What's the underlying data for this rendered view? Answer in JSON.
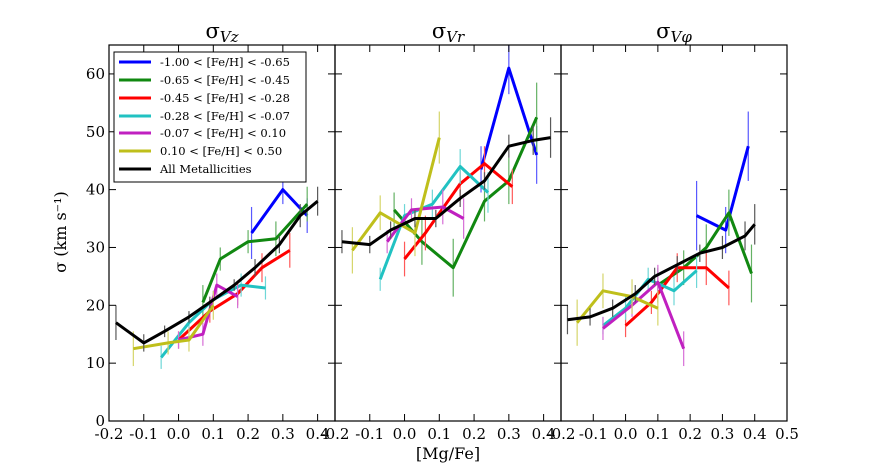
{
  "figure": {
    "xlabel": "[Mg/Fe]",
    "ylabel": "σ (km s⁻¹)",
    "legend": {
      "placement": "top-left of first panel",
      "entries": [
        {
          "label": "-1.00 < [Fe/H] < -0.65",
          "color": "#0000ff"
        },
        {
          "label": "-0.65 < [Fe/H] < -0.45",
          "color": "#118811"
        },
        {
          "label": "-0.45 < [Fe/H] < -0.28",
          "color": "#ff0000"
        },
        {
          "label": "-0.28 < [Fe/H] < -0.07",
          "color": "#21c2c2"
        },
        {
          "label": "-0.07 < [Fe/H] < 0.10",
          "color": "#c020c0"
        },
        {
          "label": "0.10 < [Fe/H] < 0.50",
          "color": "#bfbf1b"
        },
        {
          "label": "All Metallicities",
          "color": "#000000"
        }
      ]
    }
  },
  "chart_data": [
    {
      "type": "line",
      "title": "σVz",
      "title_main": "σ",
      "title_sub": "Vz",
      "xlim": [
        -0.2,
        0.45
      ],
      "ylim": [
        0,
        65
      ],
      "xticks": [
        "-0.2",
        "-0.1",
        "0.0",
        "0.1",
        "0.2",
        "0.3",
        "0.4"
      ],
      "xtick_values": [
        -0.2,
        -0.1,
        0.0,
        0.1,
        0.2,
        0.3,
        0.4
      ],
      "yticks": [
        "0",
        "10",
        "20",
        "30",
        "40",
        "50",
        "60"
      ],
      "ytick_values": [
        0,
        10,
        20,
        30,
        40,
        50,
        60
      ],
      "series": [
        {
          "name": "-1.00 < [Fe/H] < -0.65",
          "color": "#0000ff",
          "x": [
            0.21,
            0.3,
            0.37
          ],
          "y": [
            32.5,
            40.0,
            35.5
          ],
          "err": [
            4.5,
            2.5,
            3.0
          ]
        },
        {
          "name": "-0.65 < [Fe/H] < -0.45",
          "color": "#118811",
          "x": [
            0.07,
            0.12,
            0.2,
            0.28,
            0.37
          ],
          "y": [
            20.5,
            28.0,
            31.0,
            31.5,
            37.5
          ],
          "err": [
            3.0,
            2.0,
            2.0,
            3.0,
            3.0
          ]
        },
        {
          "name": "-0.45 < [Fe/H] < -0.28",
          "color": "#ff0000",
          "x": [
            0.0,
            0.09,
            0.17,
            0.24,
            0.32
          ],
          "y": [
            14.0,
            19.0,
            22.0,
            26.5,
            29.5
          ],
          "err": [
            1.5,
            2.0,
            2.0,
            2.5,
            3.0
          ]
        },
        {
          "name": "-0.28 < [Fe/H] < -0.07",
          "color": "#21c2c2",
          "x": [
            -0.05,
            0.03,
            0.1,
            0.18,
            0.25
          ],
          "y": [
            11.0,
            17.0,
            21.0,
            23.5,
            23.0
          ],
          "err": [
            2.0,
            1.5,
            1.5,
            2.0,
            2.0
          ]
        },
        {
          "name": "-0.07 < [Fe/H] < 0.10",
          "color": "#c020c0",
          "x": [
            0.0,
            0.07,
            0.11,
            0.17
          ],
          "y": [
            14.0,
            15.0,
            23.5,
            21.5
          ],
          "err": [
            1.5,
            2.0,
            2.0,
            2.0
          ]
        },
        {
          "name": "0.10 < [Fe/H] < 0.50",
          "color": "#bfbf1b",
          "x": [
            -0.13,
            -0.03,
            0.03,
            0.1
          ],
          "y": [
            12.5,
            13.5,
            14.0,
            20.0
          ],
          "err": [
            3.0,
            2.0,
            2.0,
            2.5
          ]
        },
        {
          "name": "All Metallicities",
          "color": "#000000",
          "x": [
            -0.18,
            -0.1,
            -0.04,
            0.03,
            0.09,
            0.16,
            0.22,
            0.29,
            0.35,
            0.4
          ],
          "y": [
            17.0,
            13.5,
            15.5,
            18.0,
            20.5,
            23.5,
            26.5,
            30.5,
            35.5,
            38.0
          ],
          "err": [
            3.0,
            1.5,
            1.0,
            1.0,
            1.0,
            1.0,
            1.5,
            1.5,
            2.0,
            2.5
          ]
        }
      ]
    },
    {
      "type": "line",
      "title": "σVr",
      "title_main": "σ",
      "title_sub": "Vr",
      "xlim": [
        -0.2,
        0.45
      ],
      "ylim": [
        0,
        65
      ],
      "xticks": [
        "-0.2",
        "-0.1",
        "0.0",
        "0.1",
        "0.2",
        "0.3",
        "0.4"
      ],
      "xtick_values": [
        -0.2,
        -0.1,
        0.0,
        0.1,
        0.2,
        0.3,
        0.4
      ],
      "yticks": [],
      "ytick_values": [
        0,
        10,
        20,
        30,
        40,
        50,
        60
      ],
      "series": [
        {
          "name": "-1.00 < [Fe/H] < -0.65",
          "color": "#0000ff",
          "x": [
            0.22,
            0.3,
            0.38
          ],
          "y": [
            43.5,
            61.0,
            46.0
          ],
          "err": [
            4.0,
            4.5,
            5.0
          ]
        },
        {
          "name": "-0.65 < [Fe/H] < -0.45",
          "color": "#118811",
          "x": [
            -0.03,
            0.05,
            0.14,
            0.23,
            0.3,
            0.38
          ],
          "y": [
            36.5,
            31.0,
            26.5,
            38.0,
            41.5,
            52.5
          ],
          "err": [
            3.0,
            4.0,
            5.0,
            3.5,
            4.0,
            6.0
          ]
        },
        {
          "name": "-0.45 < [Fe/H] < -0.28",
          "color": "#ff0000",
          "x": [
            0.0,
            0.06,
            0.16,
            0.23,
            0.31
          ],
          "y": [
            28.0,
            32.5,
            41.0,
            44.5,
            40.5
          ],
          "err": [
            3.0,
            3.0,
            3.0,
            3.0,
            3.0
          ]
        },
        {
          "name": "-0.28 < [Fe/H] < -0.07",
          "color": "#21c2c2",
          "x": [
            -0.07,
            0.0,
            0.08,
            0.16,
            0.24
          ],
          "y": [
            24.5,
            35.5,
            37.5,
            44.0,
            39.5
          ],
          "err": [
            2.0,
            2.0,
            2.5,
            3.0,
            3.5
          ]
        },
        {
          "name": "-0.07 < [Fe/H] < 0.10",
          "color": "#c020c0",
          "x": [
            -0.05,
            0.02,
            0.11,
            0.17
          ],
          "y": [
            31.0,
            36.5,
            37.0,
            35.0
          ],
          "err": [
            2.0,
            2.0,
            3.0,
            3.5
          ]
        },
        {
          "name": "0.10 < [Fe/H] < 0.50",
          "color": "#bfbf1b",
          "x": [
            -0.15,
            -0.07,
            0.03,
            0.1
          ],
          "y": [
            29.5,
            36.0,
            32.5,
            49.0
          ],
          "err": [
            4.0,
            3.0,
            4.0,
            4.5
          ]
        },
        {
          "name": "All Metallicities",
          "color": "#000000",
          "x": [
            -0.18,
            -0.1,
            -0.04,
            0.03,
            0.09,
            0.16,
            0.23,
            0.3,
            0.37,
            0.42
          ],
          "y": [
            31.0,
            30.5,
            33.0,
            35.0,
            35.0,
            38.5,
            41.5,
            47.5,
            48.5,
            49.0
          ],
          "err": [
            2.0,
            1.5,
            1.5,
            1.5,
            1.5,
            1.5,
            1.5,
            2.0,
            2.5,
            3.5
          ]
        }
      ]
    },
    {
      "type": "line",
      "title": "σVφ",
      "title_main": "σ",
      "title_sub": "Vφ",
      "xlim": [
        -0.2,
        0.5
      ],
      "ylim": [
        0,
        65
      ],
      "xticks": [
        "-0.2",
        "-0.1",
        "0.0",
        "0.1",
        "0.2",
        "0.3",
        "0.4",
        "0.5"
      ],
      "xtick_values": [
        -0.2,
        -0.1,
        0.0,
        0.1,
        0.2,
        0.3,
        0.4,
        0.5
      ],
      "yticks": [],
      "ytick_values": [
        0,
        10,
        20,
        30,
        40,
        50,
        60
      ],
      "series": [
        {
          "name": "-1.00 < [Fe/H] < -0.65",
          "color": "#0000ff",
          "x": [
            0.22,
            0.31,
            0.38
          ],
          "y": [
            35.5,
            33.0,
            47.5
          ],
          "err": [
            6.0,
            4.0,
            6.0
          ]
        },
        {
          "name": "-0.65 < [Fe/H] < -0.45",
          "color": "#118811",
          "x": [
            0.1,
            0.18,
            0.25,
            0.32,
            0.39
          ],
          "y": [
            23.5,
            26.5,
            30.0,
            36.0,
            25.5
          ],
          "err": [
            3.0,
            3.0,
            4.0,
            4.0,
            5.0
          ]
        },
        {
          "name": "-0.45 < [Fe/H] < -0.28",
          "color": "#ff0000",
          "x": [
            0.0,
            0.08,
            0.16,
            0.25,
            0.32
          ],
          "y": [
            16.5,
            20.5,
            26.5,
            26.5,
            23.0
          ],
          "err": [
            2.0,
            2.0,
            2.5,
            3.0,
            3.0
          ]
        },
        {
          "name": "-0.28 < [Fe/H] < -0.07",
          "color": "#21c2c2",
          "x": [
            -0.07,
            0.0,
            0.07,
            0.15,
            0.22
          ],
          "y": [
            16.5,
            19.5,
            24.5,
            22.5,
            26.0
          ],
          "err": [
            1.5,
            2.0,
            2.0,
            2.5,
            3.0
          ]
        },
        {
          "name": "-0.07 < [Fe/H] < 0.10",
          "color": "#c020c0",
          "x": [
            -0.07,
            0.02,
            0.1,
            0.18
          ],
          "y": [
            16.0,
            20.0,
            24.0,
            12.5
          ],
          "err": [
            2.0,
            2.0,
            3.0,
            3.0
          ]
        },
        {
          "name": "0.10 < [Fe/H] < 0.50",
          "color": "#bfbf1b",
          "x": [
            -0.15,
            -0.07,
            0.02,
            0.1
          ],
          "y": [
            17.0,
            22.5,
            21.5,
            19.5
          ],
          "err": [
            4.0,
            3.0,
            3.0,
            3.0
          ]
        },
        {
          "name": "All Metallicities",
          "color": "#000000",
          "x": [
            -0.18,
            -0.11,
            -0.04,
            0.03,
            0.09,
            0.16,
            0.23,
            0.3,
            0.37,
            0.4
          ],
          "y": [
            17.5,
            18.0,
            19.5,
            22.0,
            25.0,
            27.0,
            29.0,
            30.0,
            32.0,
            34.0
          ],
          "err": [
            2.5,
            1.5,
            1.5,
            1.5,
            1.5,
            1.5,
            1.5,
            2.0,
            2.5,
            3.5
          ]
        }
      ]
    }
  ]
}
